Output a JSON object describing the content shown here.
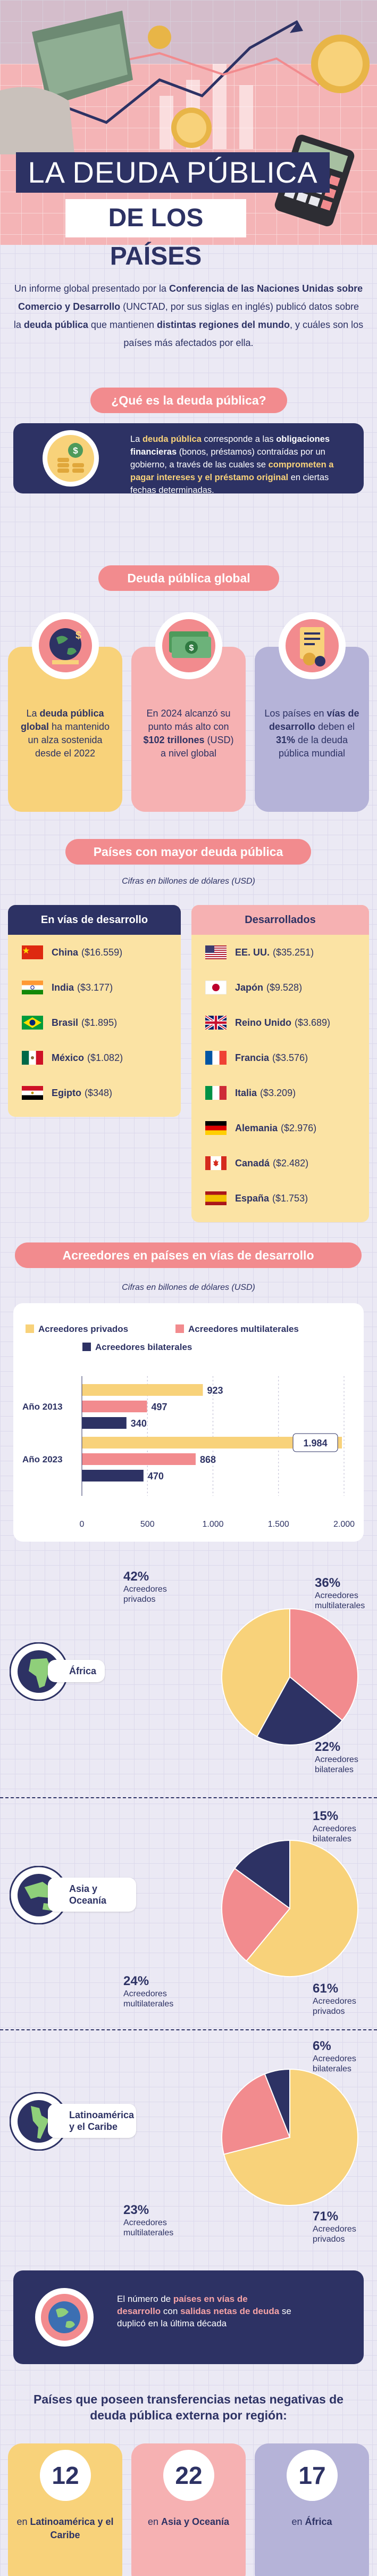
{
  "header": {
    "title_line1": "LA DEUDA PÚBLICA",
    "title_line2": "DE LOS PAÍSES"
  },
  "intro": [
    "Un informe global presentado por la ",
    "Conferencia de las Naciones Unidas sobre Comercio y Desarrollo",
    " (UNCTAD, por sus siglas en inglés) publicó datos sobre la ",
    "deuda pública",
    " que mantienen ",
    "distintas regiones del mundo",
    ", y cuáles son los países más afectados por ella."
  ],
  "definition": {
    "heading": "¿Qué es la deuda pública?",
    "text": [
      "La ",
      "deuda pública",
      " corresponde a las ",
      "obligaciones financieras",
      " (bonos, préstamos) contraídas por un gobierno, a través de las cuales se ",
      "comprometen a pagar intereses y el préstamo original",
      " en ciertas fechas determinadas."
    ]
  },
  "global": {
    "heading": "Deuda pública global",
    "cards": [
      [
        "La ",
        "deuda pública global",
        " ha mantenido un alza sostenida desde el 2022"
      ],
      [
        "En 2024 alcanzó su punto más alto con ",
        "$102 trillones",
        " (USD) a nivel global"
      ],
      [
        "Los países en ",
        "vías de desarrollo",
        " deben el ",
        "31%",
        " de la deuda pública mundial"
      ]
    ]
  },
  "countries": {
    "heading": "Países con mayor deuda pública",
    "subtitle": "Cifras en billones de dólares (USD)",
    "developing": {
      "title": "En vías de desarrollo",
      "rows": [
        {
          "name": "China",
          "amount": "($16.559)"
        },
        {
          "name": "India",
          "amount": "($3.177)"
        },
        {
          "name": "Brasil",
          "amount": "($1.895)"
        },
        {
          "name": "México",
          "amount": "($1.082)"
        },
        {
          "name": "Egipto",
          "amount": "($348)"
        }
      ]
    },
    "developed": {
      "title": "Desarrollados",
      "rows": [
        {
          "name": "EE. UU.",
          "amount": "($35.251)"
        },
        {
          "name": "Japón",
          "amount": "($9.528)"
        },
        {
          "name": "Reino Unido",
          "amount": "($3.689)"
        },
        {
          "name": "Francia",
          "amount": "($3.576)"
        },
        {
          "name": "Italia",
          "amount": "($3.209)"
        },
        {
          "name": "Alemania",
          "amount": "($2.976)"
        },
        {
          "name": "Canadá",
          "amount": "($2.482)"
        },
        {
          "name": "España",
          "amount": "($1.753)"
        }
      ]
    }
  },
  "creditors": {
    "heading": "Acreedores en países en vías de desarrollo",
    "subtitle": "Cifras en billones de dólares (USD)"
  },
  "chart_data": [
    {
      "type": "bar",
      "orientation": "horizontal",
      "categories": [
        "Año 2013",
        "Año 2023"
      ],
      "series": [
        {
          "name": "Acreedores privados",
          "color": "#f8d27a",
          "values": [
            923,
            1984
          ],
          "value_labels": [
            "923",
            "1.984"
          ]
        },
        {
          "name": "Acreedores multilaterales",
          "color": "#f28b8e",
          "values": [
            497,
            868
          ],
          "value_labels": [
            "497",
            "868"
          ]
        },
        {
          "name": "Acreedores bilaterales",
          "color": "#2d3264",
          "values": [
            340,
            470
          ],
          "value_labels": [
            "340",
            "470"
          ]
        }
      ],
      "xlim": [
        0,
        2000
      ],
      "xticks": [
        0,
        500,
        {
          "value": 1000,
          "label": "1.000"
        },
        {
          "value": 1500,
          "label": "1.500"
        },
        {
          "value": 2000,
          "label": "2.000"
        }
      ],
      "grid": true
    },
    {
      "type": "pie",
      "title": "África",
      "categories": [
        "Acreedores multilaterales",
        "Acreedores bilaterales",
        "Acreedores privados"
      ],
      "values": [
        36,
        22,
        42
      ],
      "value_labels": [
        "36%",
        "22%",
        "42%"
      ],
      "colors": [
        "#f28b8e",
        "#2d3264",
        "#f8d27a"
      ]
    },
    {
      "type": "pie",
      "title": "Asia y Oceanía",
      "categories": [
        "Acreedores privados",
        "Acreedores multilaterales",
        "Acreedores bilaterales"
      ],
      "values": [
        61,
        24,
        15
      ],
      "value_labels": [
        "61%",
        "24%",
        "15%"
      ],
      "colors": [
        "#f8d27a",
        "#f28b8e",
        "#2d3264"
      ]
    },
    {
      "type": "pie",
      "title": "Latinoamérica y el Caribe",
      "categories": [
        "Acreedores privados",
        "Acreedores multilaterales",
        "Acreedores bilaterales"
      ],
      "values": [
        71,
        23,
        6
      ],
      "value_labels": [
        "71%",
        "23%",
        "6%"
      ],
      "colors": [
        "#f8d27a",
        "#f28b8e",
        "#2d3264"
      ]
    }
  ],
  "note": [
    "El número de ",
    "países en vías de desarrollo",
    " con ",
    "salidas netas de deuda",
    " se duplicó en la última década"
  ],
  "transfers": {
    "heading": "Países que poseen transferencias netas negativas de deuda pública externa por región:",
    "cards": [
      {
        "number": 12,
        "text": [
          "en ",
          "Latinoamérica y el Caribe"
        ]
      },
      {
        "number": 22,
        "text": [
          "en ",
          "Asia y Oceanía"
        ]
      },
      {
        "number": 17,
        "text": [
          "en ",
          "África"
        ]
      }
    ]
  }
}
